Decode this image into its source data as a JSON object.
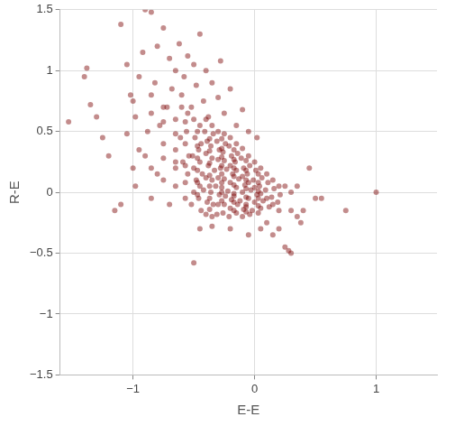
{
  "chart_data": {
    "type": "scatter",
    "x_label": "E-E",
    "y_label": "R-E",
    "color": "#7b0000",
    "grid": true,
    "xlim": [
      -1.6,
      1.5
    ],
    "xticks": [
      {
        "value": -1,
        "label": "−1"
      },
      0,
      1
    ],
    "ylim": [
      -1.5,
      1.5
    ],
    "yticks": [
      {
        "value": -1.5,
        "label": "−1.5"
      },
      {
        "value": -1,
        "label": "−1"
      },
      {
        "value": -0.5,
        "label": "−0.5"
      },
      0,
      0.5,
      1,
      1.5
    ],
    "x": [
      -1.53,
      -1.38,
      -1.4,
      -1.35,
      -1.3,
      -1.25,
      -1.1,
      -1.05,
      -1.02,
      -1.0,
      -0.98,
      -0.95,
      -0.92,
      -0.9,
      -0.85,
      -0.82,
      -0.8,
      -0.78,
      -0.75,
      -0.72,
      -0.7,
      -0.68,
      -0.65,
      -0.62,
      -0.6,
      -0.58,
      -0.55,
      -0.52,
      -0.5,
      -0.48,
      -0.45,
      -0.42,
      -0.4,
      -0.38,
      -0.35,
      -0.3,
      -0.28,
      -0.25,
      -0.2,
      -0.15,
      -0.1,
      -0.05,
      0.02,
      -1.0,
      -1.1,
      -1.15,
      -0.98,
      -0.9,
      -0.85,
      -0.8,
      -0.75,
      -0.7,
      -0.65,
      -1.2,
      -1.05,
      -0.88,
      -0.95,
      0.3,
      0.28,
      0.25,
      0.35,
      0.4,
      0.45,
      0.5,
      0.55,
      0.75,
      1.0,
      0.3,
      0.25,
      0.2,
      0.15,
      0.1,
      -0.5,
      -0.45,
      -0.35,
      -0.2,
      -0.05,
      0.05,
      0.38,
      0.3,
      0.35,
      -0.6,
      -0.61,
      -0.59,
      -0.55,
      -0.56,
      -0.54,
      -0.55,
      -0.5,
      -0.49,
      -0.51,
      -0.5,
      -0.48,
      -0.5,
      -0.52,
      -0.45,
      -0.44,
      -0.46,
      -0.45,
      -0.43,
      -0.45,
      -0.46,
      -0.44,
      -0.4,
      -0.41,
      -0.39,
      -0.4,
      -0.38,
      -0.4,
      -0.42,
      -0.39,
      -0.4,
      -0.35,
      -0.34,
      -0.36,
      -0.35,
      -0.33,
      -0.35,
      -0.36,
      -0.34,
      -0.35,
      -0.3,
      -0.31,
      -0.29,
      -0.3,
      -0.28,
      -0.3,
      -0.32,
      -0.29,
      -0.3,
      -0.31,
      -0.25,
      -0.24,
      -0.26,
      -0.25,
      -0.23,
      -0.25,
      -0.27,
      -0.24,
      -0.25,
      -0.26,
      -0.2,
      -0.21,
      -0.19,
      -0.2,
      -0.18,
      -0.2,
      -0.22,
      -0.19,
      -0.2,
      -0.21,
      -0.15,
      -0.14,
      -0.16,
      -0.15,
      -0.13,
      -0.15,
      -0.17,
      -0.14,
      -0.15,
      -0.1,
      -0.11,
      -0.09,
      -0.1,
      -0.08,
      -0.1,
      -0.12,
      -0.09,
      -0.1,
      -0.05,
      -0.04,
      -0.06,
      -0.05,
      -0.03,
      -0.05,
      -0.07,
      -0.04,
      0.0,
      0.01,
      -0.01,
      0.0,
      0.02,
      0.0,
      -0.02,
      0.05,
      0.06,
      0.04,
      0.05,
      0.07,
      0.05,
      0.1,
      0.11,
      0.09,
      0.1,
      0.12,
      0.15,
      0.16,
      0.14,
      0.15,
      0.2,
      0.21,
      0.19,
      0.2,
      -0.37,
      -0.37,
      -0.37,
      -0.37,
      -0.37,
      -0.37,
      -0.37,
      -0.27,
      -0.27,
      -0.27,
      -0.27,
      -0.27,
      -0.27,
      -0.27,
      -0.27,
      -0.17,
      -0.17,
      -0.17,
      -0.17,
      -0.17,
      -0.17,
      -0.17,
      -0.17,
      -0.07,
      -0.07,
      -0.07,
      -0.07,
      -0.07,
      -0.07,
      -0.07,
      0.03,
      0.03,
      0.03,
      0.03,
      0.03,
      0.03,
      -0.47,
      -0.47,
      -0.47,
      -0.47,
      -0.47,
      -0.47,
      -0.57,
      -0.57,
      -0.57,
      -0.57,
      -0.57,
      -0.65,
      -0.65,
      -0.65,
      -0.65,
      -0.65,
      -0.75,
      -0.75,
      -0.75,
      -0.75,
      -0.85,
      -0.85,
      -0.85
    ],
    "values": [
      0.58,
      1.02,
      0.95,
      0.72,
      0.62,
      0.45,
      1.38,
      1.05,
      0.8,
      0.75,
      0.62,
      0.95,
      1.15,
      1.5,
      1.48,
      0.9,
      1.2,
      0.55,
      1.35,
      0.7,
      1.1,
      0.85,
      1.0,
      1.22,
      0.8,
      0.95,
      1.12,
      0.7,
      1.05,
      0.88,
      1.3,
      0.75,
      1.0,
      0.62,
      0.9,
      0.78,
      1.08,
      0.65,
      0.85,
      0.55,
      0.68,
      0.5,
      0.45,
      0.2,
      -0.1,
      -0.15,
      0.05,
      0.3,
      -0.05,
      0.15,
      0.4,
      -0.1,
      0.25,
      0.3,
      0.48,
      0.5,
      0.35,
      -0.5,
      -0.48,
      -0.45,
      -0.2,
      -0.15,
      0.2,
      -0.05,
      -0.05,
      -0.15,
      0.0,
      0.0,
      0.05,
      -0.3,
      -0.35,
      -0.25,
      -0.58,
      -0.3,
      -0.28,
      -0.3,
      -0.35,
      -0.3,
      -0.25,
      -0.15,
      0.05,
      0.7,
      0.45,
      0.25,
      0.65,
      0.5,
      0.3,
      0.15,
      0.6,
      0.45,
      0.3,
      0.2,
      0.1,
      0.0,
      -0.1,
      0.55,
      0.4,
      0.35,
      0.25,
      0.15,
      0.05,
      -0.05,
      -0.15,
      0.6,
      0.5,
      0.42,
      0.32,
      0.22,
      0.12,
      0.02,
      -0.08,
      -0.18,
      0.55,
      0.48,
      0.38,
      0.28,
      0.18,
      0.1,
      0.0,
      -0.1,
      -0.2,
      0.5,
      0.42,
      0.35,
      0.27,
      0.2,
      0.12,
      0.05,
      -0.02,
      -0.1,
      -0.18,
      0.48,
      0.4,
      0.33,
      0.26,
      0.19,
      0.11,
      0.04,
      -0.03,
      -0.1,
      -0.17,
      0.45,
      0.38,
      0.3,
      0.22,
      0.15,
      0.08,
      0.01,
      -0.06,
      -0.13,
      -0.2,
      0.4,
      0.32,
      0.25,
      0.18,
      0.11,
      0.04,
      -0.03,
      -0.1,
      -0.17,
      0.36,
      0.28,
      0.2,
      0.13,
      0.06,
      0.0,
      -0.07,
      -0.14,
      -0.2,
      0.3,
      0.22,
      0.15,
      0.08,
      0.02,
      -0.05,
      -0.12,
      -0.18,
      0.25,
      0.18,
      0.1,
      0.04,
      -0.02,
      -0.08,
      -0.15,
      0.2,
      0.12,
      0.05,
      -0.01,
      -0.07,
      -0.13,
      0.15,
      0.08,
      0.02,
      -0.05,
      -0.12,
      0.1,
      0.03,
      -0.04,
      -0.1,
      0.05,
      -0.02,
      -0.08,
      -0.15,
      0.44,
      0.34,
      0.24,
      0.14,
      0.05,
      -0.05,
      -0.14,
      0.44,
      0.36,
      0.29,
      0.22,
      0.15,
      0.08,
      0.0,
      -0.07,
      0.35,
      0.27,
      0.2,
      0.13,
      0.06,
      -0.01,
      -0.08,
      -0.15,
      0.26,
      0.18,
      0.1,
      0.03,
      -0.04,
      -0.1,
      -0.16,
      0.15,
      0.08,
      0.01,
      -0.05,
      -0.11,
      -0.17,
      0.5,
      0.38,
      0.28,
      0.18,
      0.08,
      -0.02,
      0.58,
      0.4,
      0.22,
      0.08,
      -0.05,
      0.6,
      0.48,
      0.35,
      0.2,
      0.05,
      0.7,
      0.58,
      0.28,
      0.1,
      0.8,
      0.65,
      0.2
    ]
  }
}
